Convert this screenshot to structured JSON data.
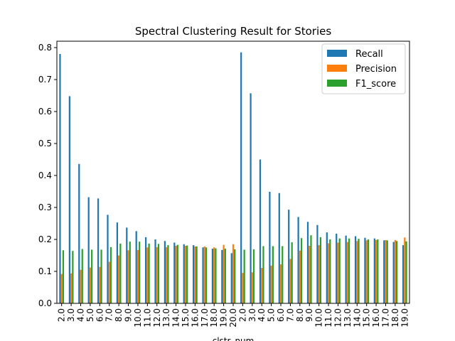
{
  "chart_data": {
    "type": "bar",
    "title": "Spectral Clustering Result for Stories",
    "xlabel": "clstr_num",
    "ylabel": "",
    "ylim": [
      0,
      0.82
    ],
    "yticks": [
      "0.0",
      "0.1",
      "0.2",
      "0.3",
      "0.4",
      "0.5",
      "0.6",
      "0.7",
      "0.8"
    ],
    "legend_position": "top-right",
    "categories": [
      "2.0",
      "3.0",
      "4.0",
      "5.0",
      "6.0",
      "7.0",
      "8.0",
      "9.0",
      "10.0",
      "11.0",
      "12.0",
      "13.0",
      "14.0",
      "15.0",
      "16.0",
      "17.0",
      "18.0",
      "19.0",
      "20.0",
      "2.0",
      "3.0",
      "4.0",
      "5.0",
      "6.0",
      "7.0",
      "8.0",
      "9.0",
      "10.0",
      "11.0",
      "12.0",
      "13.0",
      "14.0",
      "15.0",
      "16.0",
      "17.0",
      "18.0",
      "19.0"
    ],
    "series": [
      {
        "name": "Recall",
        "color": "#1f77b4",
        "values": [
          0.78,
          0.648,
          0.436,
          0.332,
          0.328,
          0.277,
          0.253,
          0.237,
          0.226,
          0.207,
          0.2,
          0.195,
          0.19,
          0.185,
          0.182,
          0.175,
          0.171,
          0.167,
          0.157,
          0.785,
          0.657,
          0.45,
          0.349,
          0.345,
          0.293,
          0.27,
          0.255,
          0.245,
          0.222,
          0.218,
          0.212,
          0.21,
          0.205,
          0.203,
          0.197,
          0.192,
          0.182
        ]
      },
      {
        "name": "Precision",
        "color": "#ff7f0e",
        "values": [
          0.092,
          0.094,
          0.105,
          0.112,
          0.114,
          0.13,
          0.15,
          0.166,
          0.167,
          0.175,
          0.176,
          0.176,
          0.18,
          0.18,
          0.178,
          0.178,
          0.175,
          0.183,
          0.185,
          0.095,
          0.097,
          0.111,
          0.118,
          0.122,
          0.139,
          0.165,
          0.18,
          0.182,
          0.188,
          0.19,
          0.192,
          0.195,
          0.197,
          0.198,
          0.198,
          0.198,
          0.206
        ]
      },
      {
        "name": "F1_score",
        "color": "#2ca02c",
        "values": [
          0.166,
          0.164,
          0.17,
          0.168,
          0.168,
          0.176,
          0.187,
          0.193,
          0.193,
          0.187,
          0.186,
          0.182,
          0.183,
          0.181,
          0.178,
          0.175,
          0.172,
          0.171,
          0.169,
          0.168,
          0.169,
          0.179,
          0.179,
          0.179,
          0.191,
          0.204,
          0.213,
          0.207,
          0.2,
          0.203,
          0.203,
          0.202,
          0.2,
          0.2,
          0.197,
          0.195,
          0.194
        ]
      }
    ]
  }
}
